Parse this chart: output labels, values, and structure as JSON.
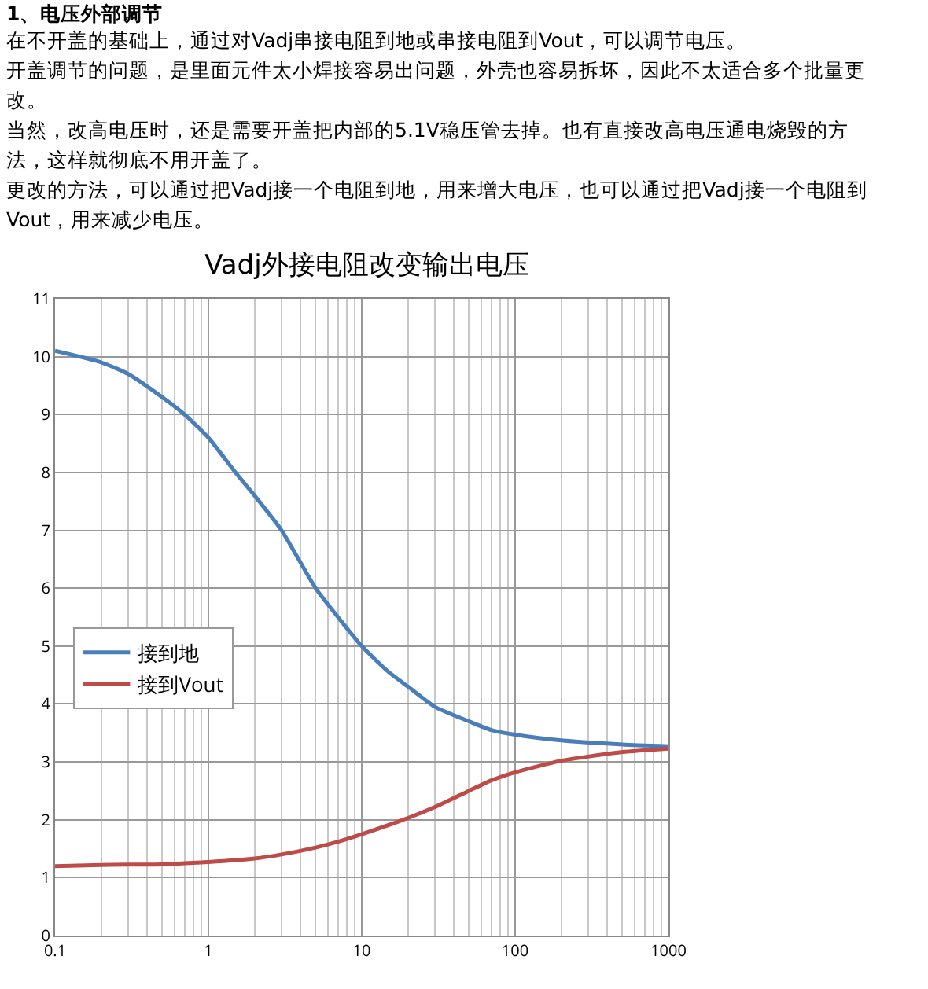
{
  "chart_data": {
    "type": "line",
    "title": "Vadj外接电阻改变输出电压",
    "annotations": [
      "1、电压外部调节",
      "在不开盖的基础上，通过对Vadj串接电阻到地或串接电阻到Vout，可以调节电压。",
      "开盖调节的问题，是里面元件太小焊接容易出问题，外壳也容易拆坏，因此不太适合多个批量更改。",
      "当然，改高电压时，还是需要开盖把内部的5.1V稳压管去掉。也有直接改高电压通电烧毁的方法，这样就彻底不用开盖了。",
      "更改的方法，可以通过把Vadj接一个电阻到地，用来增大电压，也可以通过把Vadj接一个电阻到Vout，用来减少电压。"
    ],
    "series": [
      {
        "name": "接到地",
        "color": "#4a7ebb",
        "x": [
          0.1,
          0.2,
          0.3,
          0.5,
          0.7,
          1,
          1.5,
          2,
          3,
          5,
          7,
          10,
          15,
          20,
          30,
          50,
          70,
          100,
          200,
          500,
          1000
        ],
        "values": [
          10.1,
          9.9,
          9.7,
          9.3,
          9.0,
          8.6,
          8.0,
          7.6,
          7.0,
          6.0,
          5.5,
          5.0,
          4.55,
          4.3,
          3.95,
          3.7,
          3.55,
          3.47,
          3.37,
          3.3,
          3.27
        ]
      },
      {
        "name": "接到Vout",
        "color": "#be4b48",
        "x": [
          0.1,
          0.2,
          0.5,
          0.7,
          1,
          2,
          3,
          5,
          7,
          10,
          20,
          30,
          50,
          70,
          100,
          200,
          500,
          1000
        ],
        "values": [
          1.2,
          1.22,
          1.23,
          1.25,
          1.27,
          1.33,
          1.4,
          1.52,
          1.62,
          1.75,
          2.03,
          2.22,
          2.5,
          2.68,
          2.82,
          3.02,
          3.17,
          3.23
        ]
      }
    ],
    "log": "x",
    "xlim": [
      0.1,
      1000
    ],
    "xticks": [
      0.1,
      1,
      10,
      100,
      1000
    ],
    "ylim": [
      0,
      11
    ],
    "yticks": [
      0,
      1,
      2,
      3,
      4,
      5,
      6,
      7,
      8,
      9,
      10,
      11
    ],
    "grid": true,
    "legend": "left",
    "marker": "none",
    "line_style": "solid"
  }
}
